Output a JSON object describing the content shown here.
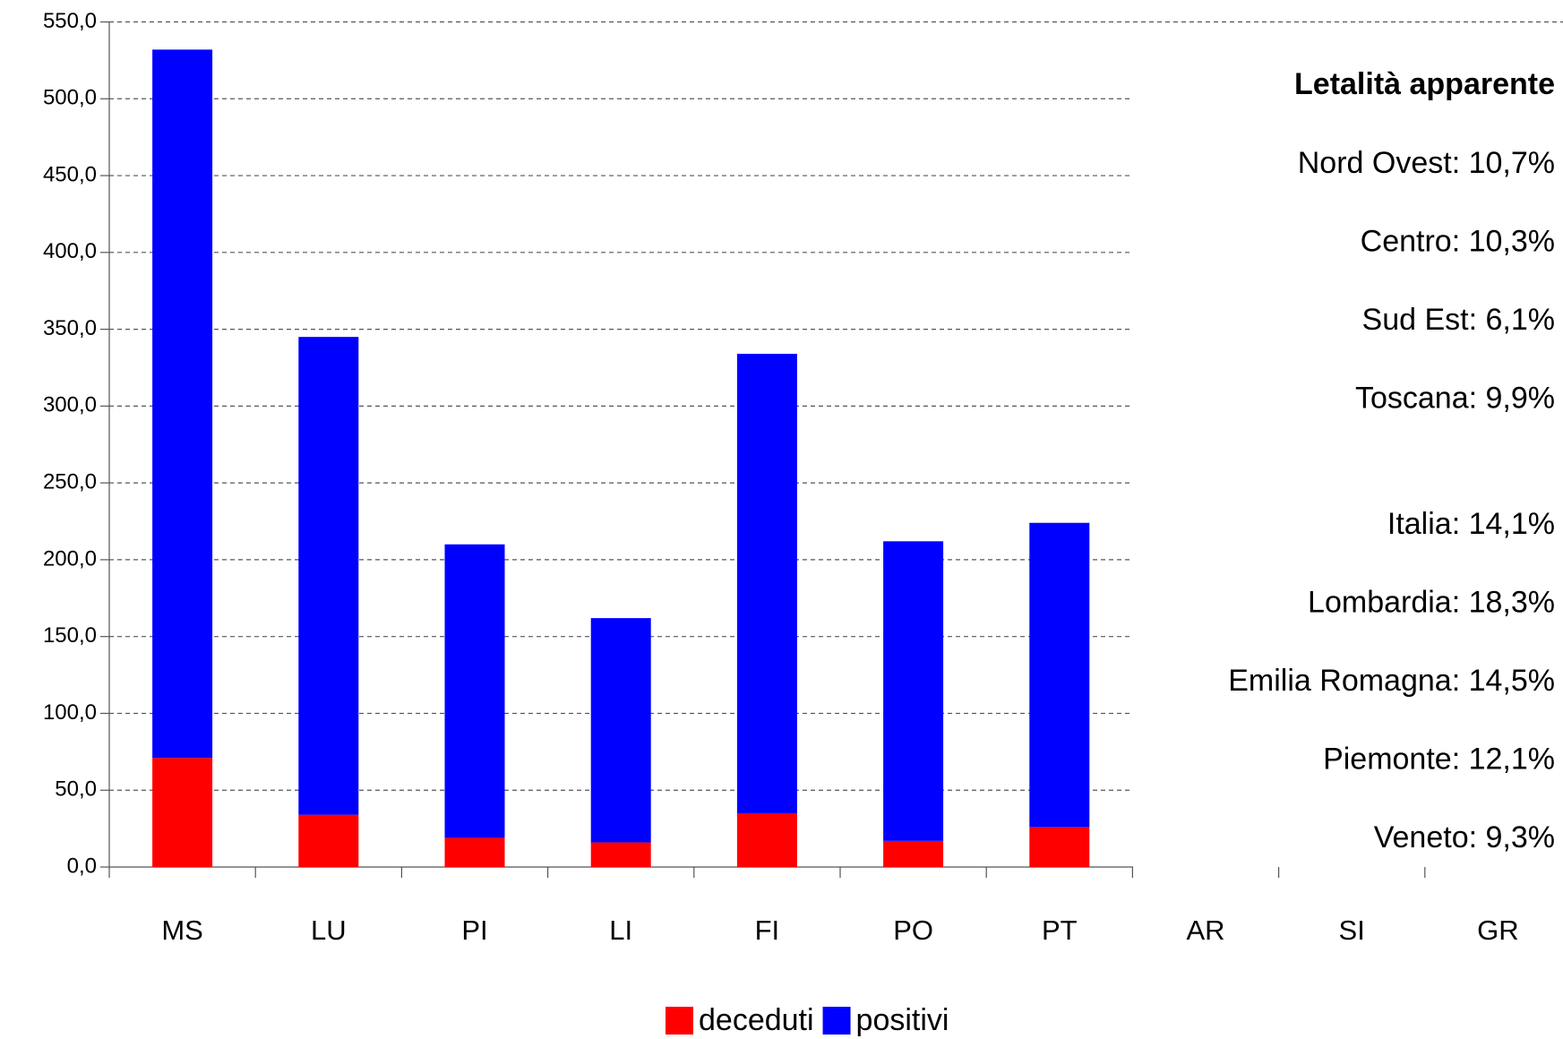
{
  "chart_data": {
    "type": "stacked_bar",
    "categories": [
      "MS",
      "LU",
      "PI",
      "LI",
      "FI",
      "PO",
      "PT",
      "AR",
      "SI",
      "GR"
    ],
    "series": [
      {
        "name": "deceduti",
        "color": "#ff0000",
        "values": [
          71,
          34,
          19,
          16,
          35,
          17,
          26,
          null,
          null,
          null
        ]
      },
      {
        "name": "positivi",
        "color": "#0000ff",
        "values": [
          461,
          311,
          191,
          146,
          299,
          195,
          198,
          null,
          null,
          null
        ]
      }
    ],
    "ylim": [
      0,
      550
    ],
    "yticks": [
      {
        "value": 0,
        "label": "0,0"
      },
      {
        "value": 50,
        "label": "50,0"
      },
      {
        "value": 100,
        "label": "100,0"
      },
      {
        "value": 150,
        "label": "150,0"
      },
      {
        "value": 200,
        "label": "200,0"
      },
      {
        "value": 250,
        "label": "250,0"
      },
      {
        "value": 300,
        "label": "300,0"
      },
      {
        "value": 350,
        "label": "350,0"
      },
      {
        "value": 400,
        "label": "400,0"
      },
      {
        "value": 450,
        "label": "450,0"
      },
      {
        "value": 500,
        "label": "500,0"
      },
      {
        "value": 550,
        "label": "550,0"
      }
    ],
    "grid": true,
    "legend": "bottom",
    "annotation": {
      "title": "Letalità apparente",
      "groups": [
        [
          "Nord Ovest: 10,7%",
          "Centro: 10,3%",
          "Sud Est: 6,1%",
          "Toscana: 9,9%"
        ],
        [
          "Italia: 14,1%",
          "Lombardia: 18,3%",
          "Emilia Romagna: 14,5%",
          "Piemonte: 12,1%",
          "Veneto: 9,3%"
        ]
      ]
    }
  }
}
